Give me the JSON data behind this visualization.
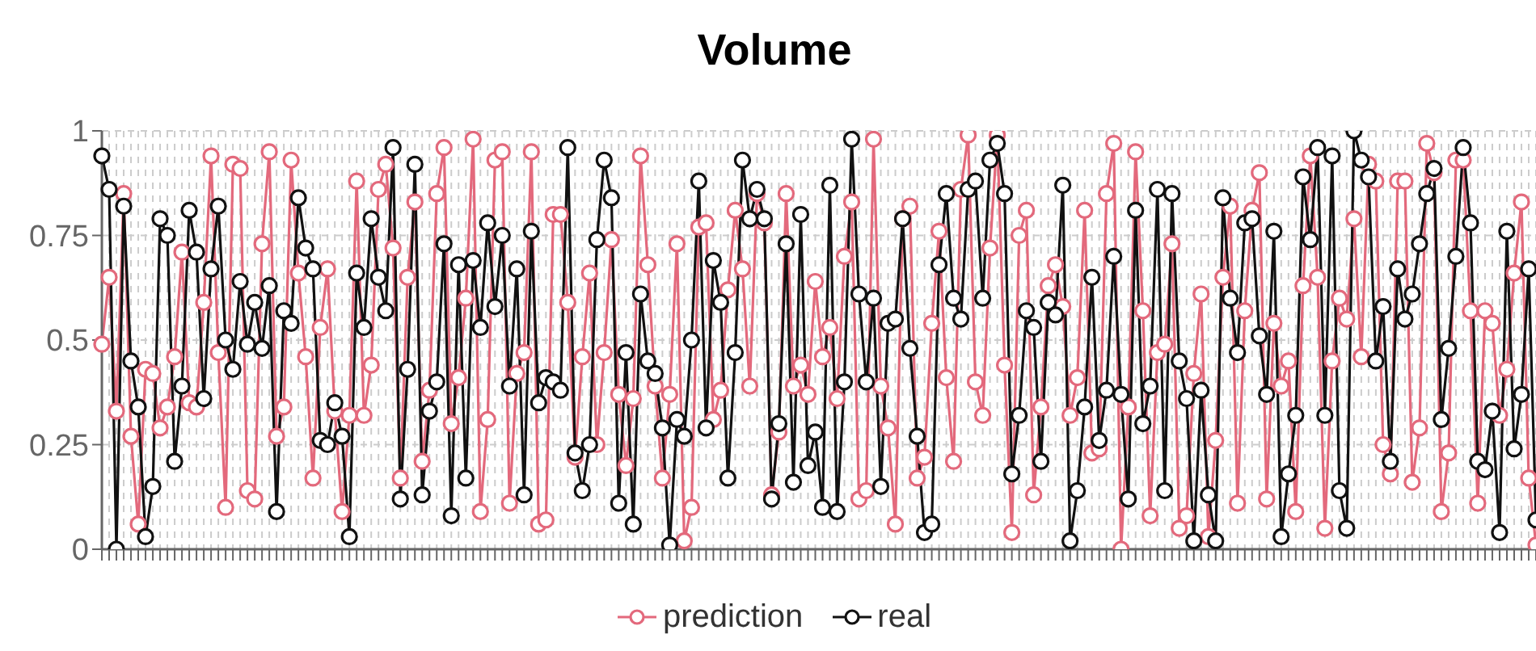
{
  "chart_data": {
    "type": "line",
    "title": "Volume",
    "categories": [
      null,
      null,
      null,
      null,
      null,
      null,
      null,
      null,
      null,
      null,
      null,
      null,
      null,
      null,
      null,
      null,
      null,
      null,
      null,
      null,
      null,
      null,
      null,
      null,
      null,
      null,
      null,
      null,
      null,
      null,
      null,
      null,
      null,
      null,
      null,
      null,
      null,
      null,
      null,
      null,
      null,
      null,
      null,
      null,
      null,
      null,
      null,
      null,
      null,
      null,
      null,
      null,
      null,
      null,
      null,
      null,
      null,
      null,
      null,
      null,
      null,
      null,
      null,
      null,
      null,
      null,
      null,
      null,
      null,
      null,
      null,
      null,
      null,
      null,
      null,
      null,
      null,
      null,
      null,
      null,
      null,
      null,
      null,
      null,
      null,
      null,
      null,
      null,
      null,
      null,
      null,
      null,
      null,
      null,
      null,
      null,
      null,
      null,
      null,
      null,
      null,
      null,
      null,
      null,
      null,
      null,
      null,
      null,
      null,
      null,
      null,
      null,
      null,
      null,
      null,
      null,
      null,
      null,
      null,
      null,
      null,
      null,
      null,
      null,
      null,
      null,
      null,
      null,
      null,
      null,
      null,
      null,
      null,
      null,
      null,
      null,
      null,
      null,
      null,
      null,
      null,
      null,
      null,
      null,
      null,
      null,
      null,
      null,
      null,
      null,
      null,
      null,
      null,
      null,
      null,
      null,
      null,
      null,
      null,
      null,
      null,
      null,
      null,
      null,
      null,
      null,
      null,
      null,
      null,
      null,
      null,
      null,
      null,
      null,
      null,
      null,
      null,
      null,
      null,
      null,
      null,
      null,
      null,
      null,
      null,
      null,
      null,
      null,
      null,
      null,
      null,
      null,
      null,
      null,
      null,
      null,
      null,
      null
    ],
    "series": [
      {
        "name": "prediction",
        "color": "#e3697c",
        "values": [
          0.49,
          0.65,
          0.33,
          0.85,
          0.27,
          0.06,
          0.43,
          0.42,
          0.29,
          0.34,
          0.46,
          0.71,
          0.35,
          0.34,
          0.59,
          0.94,
          0.47,
          0.1,
          0.92,
          0.91,
          0.14,
          0.12,
          0.73,
          0.95,
          0.27,
          0.34,
          0.93,
          0.66,
          0.46,
          0.17,
          0.53,
          0.67,
          0.33,
          0.09,
          0.32,
          0.88,
          0.32,
          0.44,
          0.86,
          0.92,
          0.72,
          0.17,
          0.65,
          0.83,
          0.21,
          0.38,
          0.85,
          0.96,
          0.3,
          0.41,
          0.6,
          0.98,
          0.09,
          0.31,
          0.93,
          0.95,
          0.11,
          0.42,
          0.47,
          0.95,
          0.06,
          0.07,
          0.8,
          0.8,
          0.59,
          0.22,
          0.46,
          0.66,
          0.25,
          0.47,
          0.74,
          0.37,
          0.2,
          0.36,
          0.94,
          0.68,
          0.39,
          0.17,
          0.37,
          0.73,
          0.02,
          0.1,
          0.77,
          0.78,
          0.31,
          0.38,
          0.62,
          0.81,
          0.67,
          0.39,
          0.85,
          0.78,
          0.13,
          0.28,
          0.85,
          0.39,
          0.44,
          0.37,
          0.64,
          0.46,
          0.53,
          0.36,
          0.7,
          0.83,
          0.12,
          0.14,
          0.98,
          0.39,
          0.29,
          0.06,
          0.79,
          0.82,
          0.17,
          0.22,
          0.54,
          0.76,
          0.41,
          0.21,
          0.86,
          0.99,
          0.4,
          0.32,
          0.72,
          0.99,
          0.44,
          0.04,
          0.75,
          0.81,
          0.13,
          0.34,
          0.63,
          0.68,
          0.58,
          0.32,
          0.41,
          0.81,
          0.23,
          0.24,
          0.85,
          0.97,
          0.0,
          0.34,
          0.95,
          0.57,
          0.08,
          0.47,
          0.49,
          0.73,
          0.05,
          0.08,
          0.42,
          0.61,
          0.03,
          0.26,
          0.65,
          0.82,
          0.11,
          0.57,
          0.81,
          0.9,
          0.12,
          0.54,
          0.39,
          0.45,
          0.09,
          0.63,
          0.94,
          0.65,
          0.05,
          0.45,
          0.6,
          0.55,
          0.79,
          0.46,
          0.92,
          0.88,
          0.25,
          0.18,
          0.88,
          0.88,
          0.16,
          0.29,
          0.97,
          0.9,
          0.09,
          0.23,
          0.93,
          0.93,
          0.57,
          0.11,
          0.57,
          0.54,
          0.32,
          0.43,
          0.66,
          0.83,
          0.17,
          0.01
        ]
      },
      {
        "name": "real",
        "color": "#111111",
        "values": [
          0.94,
          0.86,
          0.0,
          0.82,
          0.45,
          0.34,
          0.03,
          0.15,
          0.79,
          0.75,
          0.21,
          0.39,
          0.81,
          0.71,
          0.36,
          0.67,
          0.82,
          0.5,
          0.43,
          0.64,
          0.49,
          0.59,
          0.48,
          0.63,
          0.09,
          0.57,
          0.54,
          0.84,
          0.72,
          0.67,
          0.26,
          0.25,
          0.35,
          0.27,
          0.03,
          0.66,
          0.53,
          0.79,
          0.65,
          0.57,
          0.96,
          0.12,
          0.43,
          0.92,
          0.13,
          0.33,
          0.4,
          0.73,
          0.08,
          0.68,
          0.17,
          0.69,
          0.53,
          0.78,
          0.58,
          0.75,
          0.39,
          0.67,
          0.13,
          0.76,
          0.35,
          0.41,
          0.4,
          0.38,
          0.96,
          0.23,
          0.14,
          0.25,
          0.74,
          0.93,
          0.84,
          0.11,
          0.47,
          0.06,
          0.61,
          0.45,
          0.42,
          0.29,
          0.01,
          0.31,
          0.27,
          0.5,
          0.88,
          0.29,
          0.69,
          0.59,
          0.17,
          0.47,
          0.93,
          0.79,
          0.86,
          0.79,
          0.12,
          0.3,
          0.73,
          0.16,
          0.8,
          0.2,
          0.28,
          0.1,
          0.87,
          0.09,
          0.4,
          0.98,
          0.61,
          0.4,
          0.6,
          0.15,
          0.54,
          0.55,
          0.79,
          0.48,
          0.27,
          0.04,
          0.06,
          0.68,
          0.85,
          0.6,
          0.55,
          0.86,
          0.88,
          0.6,
          0.93,
          0.97,
          0.85,
          0.18,
          0.32,
          0.57,
          0.53,
          0.21,
          0.59,
          0.56,
          0.87,
          0.02,
          0.14,
          0.34,
          0.65,
          0.26,
          0.38,
          0.7,
          0.37,
          0.12,
          0.81,
          0.3,
          0.39,
          0.86,
          0.14,
          0.85,
          0.45,
          0.36,
          0.02,
          0.38,
          0.13,
          0.02,
          0.84,
          0.6,
          0.47,
          0.78,
          0.79,
          0.51,
          0.37,
          0.76,
          0.03,
          0.18,
          0.32,
          0.89,
          0.74,
          0.96,
          0.32,
          0.94,
          0.14,
          0.05,
          1.0,
          0.93,
          0.89,
          0.45,
          0.58,
          0.21,
          0.67,
          0.55,
          0.61,
          0.73,
          0.85,
          0.91,
          0.31,
          0.48,
          0.7,
          0.96,
          0.78,
          0.21,
          0.19,
          0.33,
          0.04,
          0.76,
          0.24,
          0.37,
          0.67,
          0.07
        ]
      }
    ],
    "ylim": [
      0,
      1
    ],
    "yticks": [
      0,
      0.25,
      0.5,
      0.75,
      1
    ],
    "grid": true,
    "legend": "bottom",
    "tick_labels": "y",
    "marker": "circle",
    "line_style": "solid"
  }
}
